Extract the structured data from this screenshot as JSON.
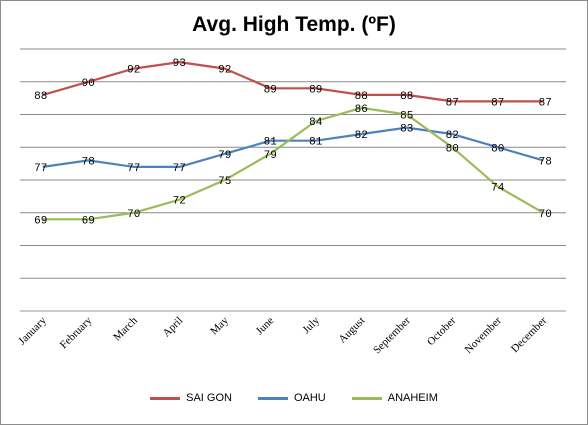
{
  "chart_data": {
    "type": "line",
    "title": "Avg. High Temp. (ºF)",
    "categories": [
      "January",
      "February",
      "March",
      "April",
      "May",
      "June",
      "July",
      "August",
      "September",
      "October",
      "November",
      "December"
    ],
    "series": [
      {
        "name": "SAI GON",
        "color": "#c0504d",
        "values": [
          88,
          90,
          92,
          93,
          92,
          89,
          89,
          88,
          88,
          87,
          87,
          87
        ]
      },
      {
        "name": "OAHU",
        "color": "#4f81bd",
        "values": [
          77,
          78,
          77,
          77,
          79,
          81,
          81,
          82,
          83,
          82,
          80,
          78
        ]
      },
      {
        "name": "ANAHEIM",
        "color": "#9bbb59",
        "values": [
          69,
          69,
          70,
          72,
          75,
          79,
          84,
          86,
          85,
          80,
          74,
          70
        ]
      }
    ],
    "ylim": [
      55,
      95
    ],
    "grid": true,
    "legend": "bottom"
  }
}
